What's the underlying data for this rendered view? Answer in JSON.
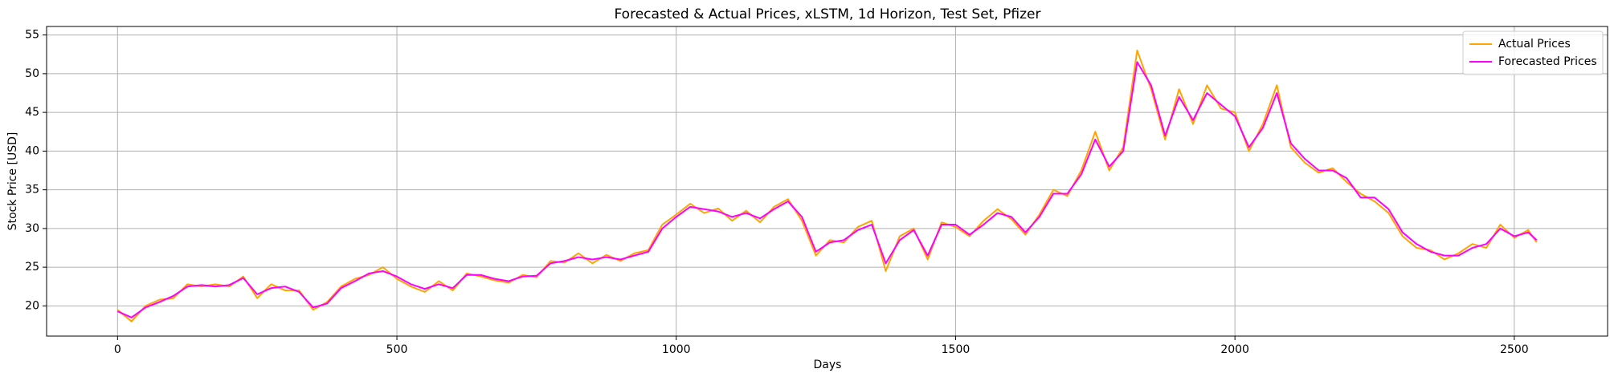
{
  "chart_data": {
    "type": "line",
    "title": "Forecasted & Actual Prices, xLSTM, 1d Horizon, Test Set, Pfizer",
    "xlabel": "Days",
    "ylabel": "Stock Price [USD]",
    "x": [
      0,
      25,
      50,
      75,
      100,
      125,
      150,
      175,
      200,
      225,
      250,
      275,
      300,
      325,
      350,
      375,
      400,
      425,
      450,
      475,
      500,
      525,
      550,
      575,
      600,
      625,
      650,
      675,
      700,
      725,
      750,
      775,
      800,
      825,
      850,
      875,
      900,
      925,
      950,
      975,
      1000,
      1025,
      1050,
      1075,
      1100,
      1125,
      1150,
      1175,
      1200,
      1225,
      1250,
      1275,
      1300,
      1325,
      1350,
      1375,
      1400,
      1425,
      1450,
      1475,
      1500,
      1525,
      1550,
      1575,
      1600,
      1625,
      1650,
      1675,
      1700,
      1725,
      1750,
      1775,
      1800,
      1825,
      1850,
      1875,
      1900,
      1925,
      1950,
      1975,
      2000,
      2025,
      2050,
      2075,
      2100,
      2125,
      2150,
      2175,
      2200,
      2225,
      2250,
      2275,
      2300,
      2325,
      2350,
      2375,
      2400,
      2425,
      2450,
      2475,
      2500,
      2525,
      2540
    ],
    "series": [
      {
        "name": "Actual Prices",
        "color": "#ffa500",
        "values": [
          19.5,
          18.0,
          20.0,
          20.8,
          21.0,
          22.8,
          22.5,
          22.8,
          22.5,
          23.8,
          21.0,
          22.8,
          22.0,
          22.0,
          19.5,
          20.5,
          22.5,
          23.5,
          24.0,
          25.0,
          23.5,
          22.5,
          21.8,
          23.2,
          22.0,
          24.2,
          23.8,
          23.3,
          23.0,
          24.0,
          23.7,
          25.8,
          25.6,
          26.8,
          25.5,
          26.6,
          25.8,
          26.8,
          27.2,
          30.5,
          31.8,
          33.2,
          32.0,
          32.6,
          31.0,
          32.3,
          30.8,
          32.8,
          33.8,
          31.0,
          26.5,
          28.5,
          28.2,
          30.2,
          31.0,
          24.5,
          29.0,
          30.0,
          26.0,
          30.8,
          30.2,
          29.0,
          31.0,
          32.5,
          31.2,
          29.2,
          31.8,
          35.0,
          34.2,
          37.5,
          42.5,
          37.5,
          40.5,
          53.0,
          48.0,
          41.5,
          48.0,
          43.5,
          48.5,
          45.5,
          45.0,
          40.0,
          43.5,
          48.5,
          40.5,
          38.5,
          37.2,
          37.8,
          36.0,
          34.5,
          33.5,
          32.0,
          29.0,
          27.5,
          27.2,
          26.0,
          26.8,
          28.0,
          27.5,
          30.5,
          28.8,
          29.8,
          28.2
        ]
      },
      {
        "name": "Forecasted Prices",
        "color": "#ff00ff",
        "values": [
          19.3,
          18.5,
          19.8,
          20.5,
          21.3,
          22.5,
          22.7,
          22.5,
          22.7,
          23.6,
          21.5,
          22.3,
          22.5,
          21.8,
          19.8,
          20.3,
          22.3,
          23.2,
          24.2,
          24.5,
          23.8,
          22.8,
          22.2,
          22.8,
          22.3,
          24.0,
          24.0,
          23.5,
          23.2,
          23.8,
          23.9,
          25.5,
          25.8,
          26.3,
          26.0,
          26.3,
          26.0,
          26.5,
          27.0,
          30.0,
          31.5,
          32.8,
          32.5,
          32.2,
          31.5,
          32.0,
          31.3,
          32.5,
          33.5,
          31.5,
          27.0,
          28.2,
          28.5,
          29.8,
          30.5,
          25.5,
          28.5,
          29.8,
          26.5,
          30.5,
          30.5,
          29.2,
          30.5,
          32.0,
          31.5,
          29.5,
          31.5,
          34.5,
          34.5,
          37.0,
          41.5,
          38.0,
          40.0,
          51.5,
          48.5,
          42.0,
          47.0,
          44.0,
          47.5,
          46.0,
          44.5,
          40.5,
          43.0,
          47.5,
          41.0,
          39.0,
          37.5,
          37.5,
          36.5,
          34.0,
          34.0,
          32.5,
          29.5,
          28.0,
          27.0,
          26.5,
          26.5,
          27.5,
          28.0,
          30.0,
          29.0,
          29.5,
          28.5
        ]
      }
    ],
    "xlim": [
      -127,
      2667
    ],
    "ylim": [
      16.1,
      56.1
    ],
    "xticks": [
      0,
      500,
      1000,
      1500,
      2000,
      2500
    ],
    "yticks": [
      20,
      25,
      30,
      35,
      40,
      45,
      50,
      55
    ],
    "grid": true,
    "legend": "upper right"
  }
}
